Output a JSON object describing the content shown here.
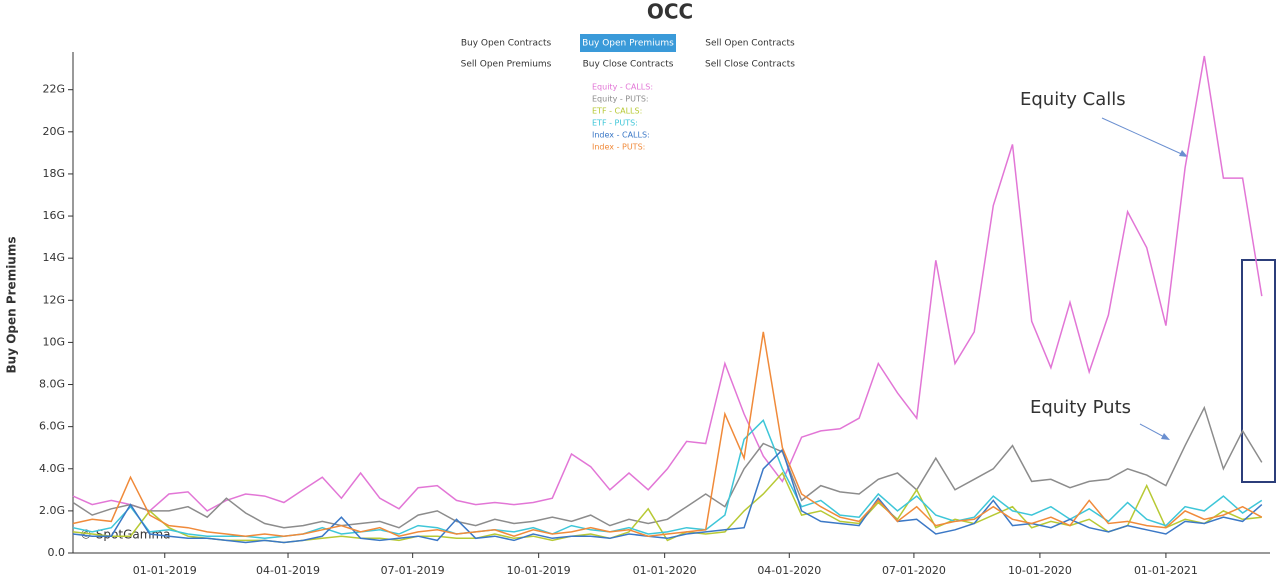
{
  "buttons": [
    "Buy Open Contracts",
    "Buy Open Premiums",
    "Sell Open Contracts",
    "Sell Open Premiums",
    "Buy Close Contracts",
    "Sell Close Contracts"
  ],
  "active_button": 1,
  "chart_data": {
    "type": "line",
    "title": "OCC",
    "y_label": "Buy Open Premiums",
    "annotations": [
      "Equity Calls",
      "Equity Puts",
      "© SpotGamma"
    ],
    "x": [
      "2018-10-26",
      "2018-11-09",
      "2018-11-23",
      "2018-12-07",
      "2018-12-21",
      "2019-01-04",
      "2019-01-18",
      "2019-02-01",
      "2019-02-15",
      "2019-03-01",
      "2019-03-15",
      "2019-03-29",
      "2019-04-12",
      "2019-04-26",
      "2019-05-10",
      "2019-05-24",
      "2019-06-07",
      "2019-06-21",
      "2019-07-05",
      "2019-07-19",
      "2019-08-02",
      "2019-08-16",
      "2019-08-30",
      "2019-09-13",
      "2019-09-27",
      "2019-10-11",
      "2019-10-25",
      "2019-11-08",
      "2019-11-22",
      "2019-12-06",
      "2019-12-20",
      "2020-01-03",
      "2020-01-17",
      "2020-01-31",
      "2020-02-14",
      "2020-02-28",
      "2020-03-13",
      "2020-03-27",
      "2020-04-10",
      "2020-04-24",
      "2020-05-08",
      "2020-05-22",
      "2020-06-05",
      "2020-06-19",
      "2020-07-03",
      "2020-07-17",
      "2020-07-31",
      "2020-08-14",
      "2020-08-28",
      "2020-09-11",
      "2020-09-25",
      "2020-10-09",
      "2020-10-23",
      "2020-11-06",
      "2020-11-20",
      "2020-12-04",
      "2020-12-18",
      "2021-01-01",
      "2021-01-15",
      "2021-01-29",
      "2021-02-12",
      "2021-02-26",
      "2021-03-12"
    ],
    "xlim": [
      "2018-10-26",
      "2021-03-18"
    ],
    "xticks": [
      {
        "value": "2019-01-01",
        "label": "01-01-2019"
      },
      {
        "value": "2019-04-01",
        "label": "04-01-2019"
      },
      {
        "value": "2019-07-01",
        "label": "07-01-2019"
      },
      {
        "value": "2019-10-01",
        "label": "10-01-2019"
      },
      {
        "value": "2020-01-01",
        "label": "01-01-2020"
      },
      {
        "value": "2020-04-01",
        "label": "04-01-2020"
      },
      {
        "value": "2020-07-01",
        "label": "07-01-2020"
      },
      {
        "value": "2020-10-01",
        "label": "10-01-2020"
      },
      {
        "value": "2021-01-01",
        "label": "01-01-2021"
      }
    ],
    "ylim": [
      0,
      23.6
    ],
    "yticks": [
      {
        "value": 0,
        "label": "0.0"
      },
      {
        "value": 2,
        "label": "2.0G"
      },
      {
        "value": 4,
        "label": "4.0G"
      },
      {
        "value": 6,
        "label": "6.0G"
      },
      {
        "value": 8,
        "label": "8.0G"
      },
      {
        "value": 10,
        "label": "10G"
      },
      {
        "value": 12,
        "label": "12G"
      },
      {
        "value": 14,
        "label": "14G"
      },
      {
        "value": 16,
        "label": "16G"
      },
      {
        "value": 18,
        "label": "18G"
      },
      {
        "value": 20,
        "label": "20G"
      },
      {
        "value": 22,
        "label": "22G"
      }
    ],
    "series": [
      {
        "name": "Equity - CALLS:",
        "color": "#e276d6",
        "values": [
          2.7,
          2.3,
          2.5,
          2.3,
          2.0,
          2.8,
          2.9,
          2.0,
          2.5,
          2.8,
          2.7,
          2.4,
          3.0,
          3.6,
          2.6,
          3.8,
          2.6,
          2.1,
          3.1,
          3.2,
          2.5,
          2.3,
          2.4,
          2.3,
          2.4,
          2.6,
          4.7,
          4.1,
          3.0,
          3.8,
          3.0,
          4.0,
          5.3,
          5.2,
          9.0,
          6.6,
          4.6,
          3.4,
          5.5,
          5.8,
          5.9,
          6.4,
          9.0,
          7.6,
          6.4,
          13.9,
          9.0,
          10.5,
          16.5,
          19.4,
          11.0,
          8.8,
          11.9,
          8.6,
          11.3,
          16.2,
          14.5,
          10.8,
          18.3,
          23.6,
          17.8,
          17.8,
          12.2
        ]
      },
      {
        "name": "Equity - PUTS:",
        "color": "#8c8c8c",
        "values": [
          2.4,
          1.8,
          2.1,
          2.3,
          2.0,
          2.0,
          2.2,
          1.7,
          2.6,
          1.9,
          1.4,
          1.2,
          1.3,
          1.5,
          1.3,
          1.4,
          1.5,
          1.2,
          1.8,
          2.0,
          1.5,
          1.3,
          1.6,
          1.4,
          1.5,
          1.7,
          1.5,
          1.8,
          1.3,
          1.6,
          1.4,
          1.6,
          2.2,
          2.8,
          2.2,
          4.0,
          5.2,
          4.8,
          2.5,
          3.2,
          2.9,
          2.8,
          3.5,
          3.8,
          3.0,
          4.5,
          3.0,
          3.5,
          4.0,
          5.1,
          3.4,
          3.5,
          3.1,
          3.4,
          3.5,
          4.0,
          3.7,
          3.2,
          5.1,
          6.9,
          4.0,
          5.8,
          4.3
        ]
      },
      {
        "name": "ETF - CALLS:",
        "color": "#b7c934",
        "values": [
          1.0,
          0.9,
          0.8,
          0.8,
          2.0,
          1.2,
          0.8,
          0.7,
          0.6,
          0.6,
          0.6,
          0.5,
          0.6,
          0.7,
          0.8,
          0.7,
          0.7,
          0.6,
          0.8,
          0.8,
          0.7,
          0.7,
          0.9,
          0.7,
          0.8,
          0.6,
          0.8,
          0.9,
          0.7,
          1.0,
          2.1,
          0.6,
          1.0,
          0.9,
          1.0,
          2.0,
          2.8,
          3.8,
          1.8,
          2.0,
          1.5,
          1.4,
          2.4,
          1.6,
          3.0,
          1.2,
          1.6,
          1.4,
          1.8,
          2.2,
          1.2,
          1.5,
          1.3,
          1.6,
          1.0,
          1.3,
          3.2,
          1.2,
          1.6,
          1.4,
          2.0,
          1.6,
          1.7
        ]
      },
      {
        "name": "ETF - PUTS:",
        "color": "#3ec6d8",
        "values": [
          1.2,
          1.0,
          1.2,
          2.2,
          1.0,
          1.1,
          0.9,
          0.8,
          0.8,
          0.8,
          0.7,
          0.8,
          0.9,
          1.2,
          0.9,
          1.0,
          1.1,
          0.9,
          1.3,
          1.2,
          0.9,
          1.0,
          1.1,
          1.0,
          1.2,
          0.9,
          1.3,
          1.1,
          1.0,
          1.2,
          0.9,
          1.0,
          1.2,
          1.1,
          1.8,
          5.4,
          6.3,
          4.0,
          2.2,
          2.5,
          1.8,
          1.7,
          2.8,
          2.0,
          2.7,
          1.8,
          1.5,
          1.7,
          2.7,
          2.0,
          1.8,
          2.2,
          1.6,
          2.1,
          1.5,
          2.4,
          1.6,
          1.3,
          2.2,
          2.0,
          2.7,
          1.9,
          2.5
        ]
      },
      {
        "name": "Index - CALLS:",
        "color": "#3b78c6",
        "values": [
          0.9,
          0.8,
          0.8,
          2.3,
          0.9,
          0.8,
          0.7,
          0.7,
          0.6,
          0.5,
          0.6,
          0.5,
          0.6,
          0.8,
          1.7,
          0.7,
          0.6,
          0.7,
          0.8,
          0.6,
          1.6,
          0.7,
          0.8,
          0.6,
          0.9,
          0.7,
          0.8,
          0.8,
          0.7,
          0.9,
          0.8,
          0.7,
          0.9,
          1.0,
          1.1,
          1.2,
          4.0,
          4.9,
          2.0,
          1.5,
          1.4,
          1.3,
          2.6,
          1.5,
          1.6,
          0.9,
          1.1,
          1.4,
          2.5,
          1.3,
          1.4,
          1.2,
          1.6,
          1.2,
          1.0,
          1.3,
          1.1,
          0.9,
          1.5,
          1.4,
          1.7,
          1.5,
          2.3
        ]
      },
      {
        "name": "Index - PUTS:",
        "color": "#f08a3a",
        "values": [
          1.4,
          1.6,
          1.5,
          3.6,
          1.8,
          1.3,
          1.2,
          1.0,
          0.9,
          0.8,
          0.9,
          0.8,
          0.9,
          1.1,
          1.3,
          1.0,
          1.2,
          0.8,
          1.0,
          1.1,
          0.9,
          1.0,
          1.1,
          0.8,
          1.1,
          0.9,
          1.0,
          1.2,
          1.0,
          1.1,
          0.8,
          0.9,
          1.0,
          1.1,
          6.6,
          4.5,
          10.5,
          5.0,
          2.8,
          2.2,
          1.7,
          1.5,
          2.5,
          1.5,
          2.2,
          1.3,
          1.5,
          1.6,
          2.2,
          1.6,
          1.4,
          1.7,
          1.3,
          2.5,
          1.4,
          1.5,
          1.3,
          1.2,
          2.0,
          1.6,
          1.8,
          2.2,
          1.7
        ]
      }
    ]
  }
}
